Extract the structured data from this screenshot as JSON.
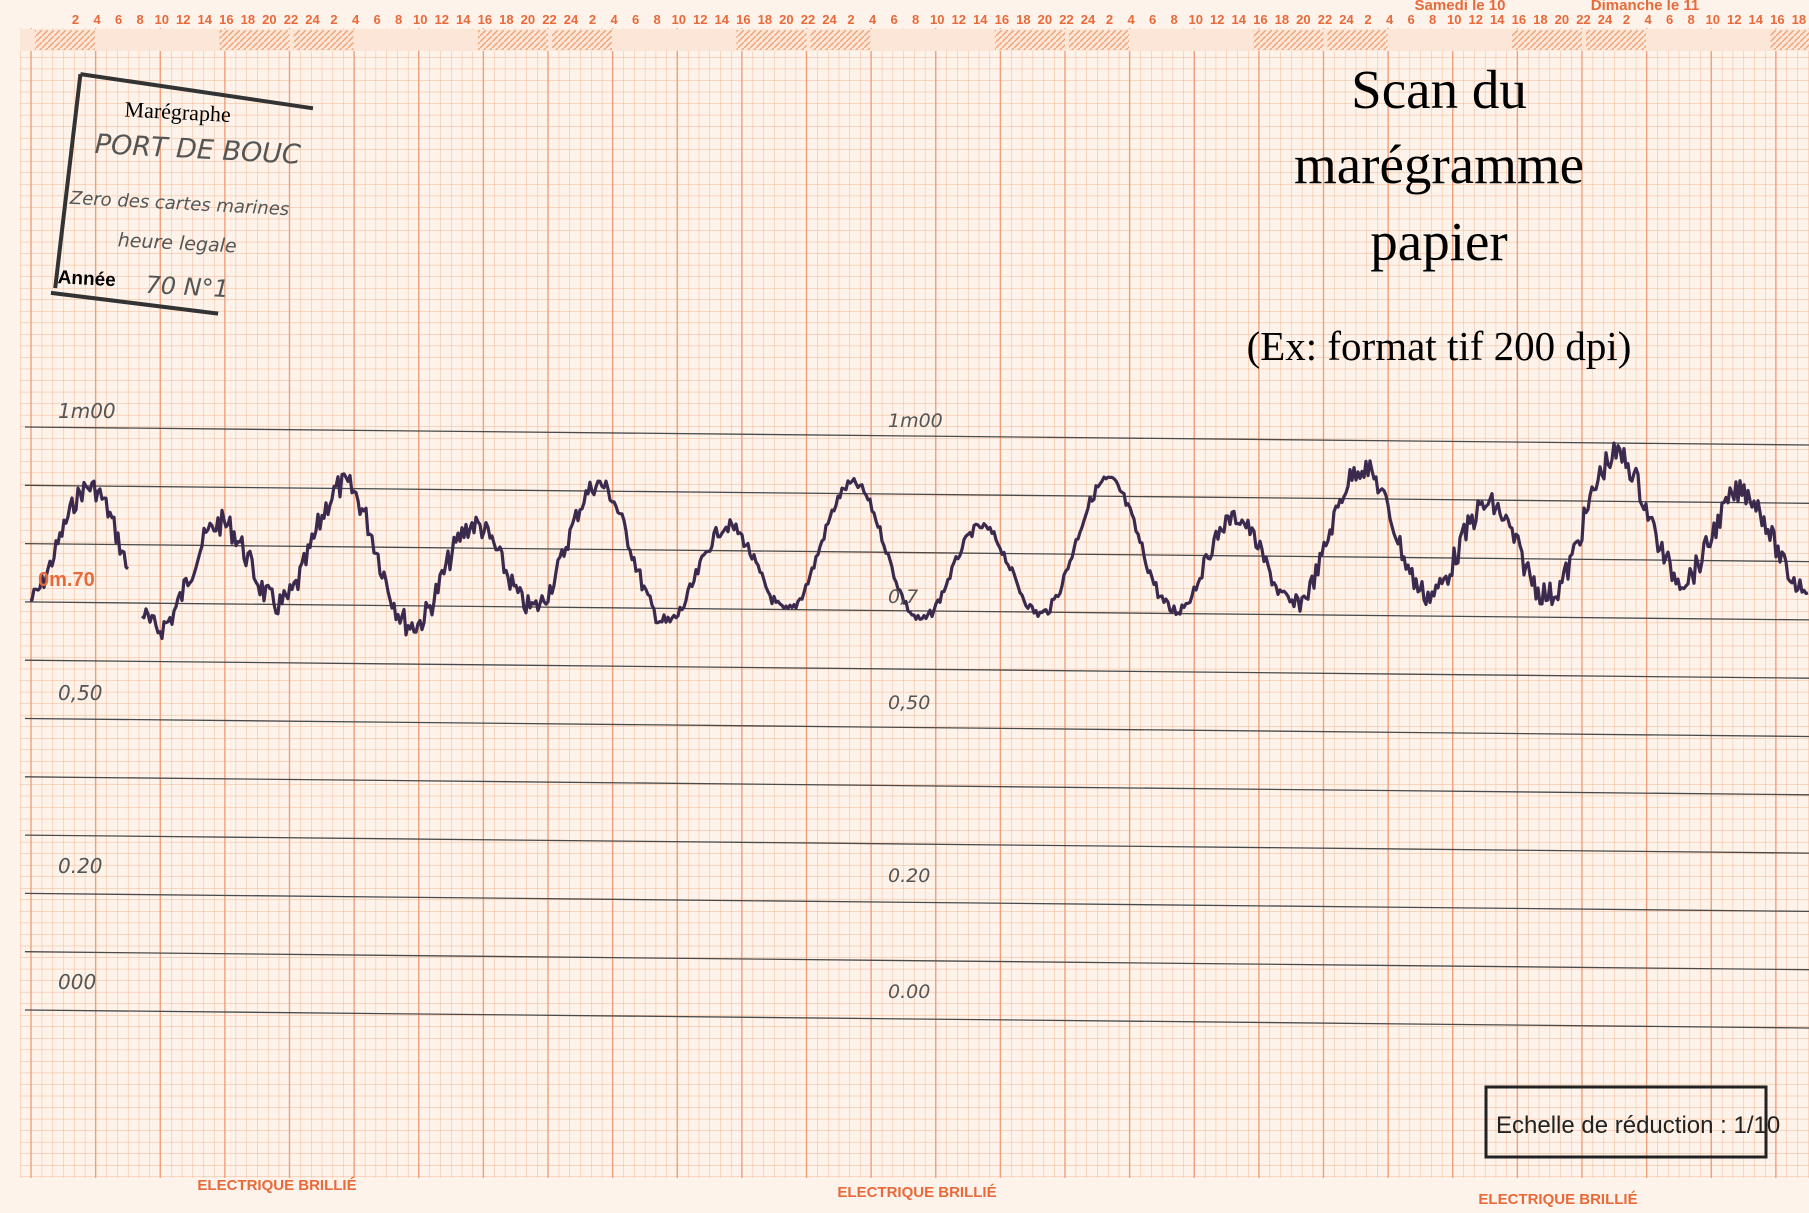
{
  "header": {
    "hours": [
      "2",
      "4",
      "6",
      "8",
      "10",
      "12",
      "14",
      "16",
      "18",
      "20",
      "22",
      "24"
    ],
    "days": [
      "Samedi le 10",
      "Dimanche le 11"
    ]
  },
  "title": {
    "lines": [
      "Scan du",
      "marégramme",
      "papier"
    ],
    "subtitle": "(Ex: format tif 200 dpi)"
  },
  "stamp": {
    "heading": "Marégraphe",
    "station": "PORT DE BOUC",
    "line1": "Zero des cartes marines",
    "line2": "heure legale",
    "year_label": "Année",
    "year": "70 N°1"
  },
  "scale_left": [
    "1m00",
    "0m.70",
    "0,50",
    "0.20",
    "000"
  ],
  "scale_middle": [
    "1m00",
    "0,7",
    "0,50",
    "0.20",
    "0.00"
  ],
  "reduction": "Echelle de réduction : 1/10",
  "footer": [
    "ELECTRIQUE BRILLIÉ",
    "ELECTRIQUE BRILLIÉ",
    "ELECTRIQUE BRILLIÉ"
  ]
}
